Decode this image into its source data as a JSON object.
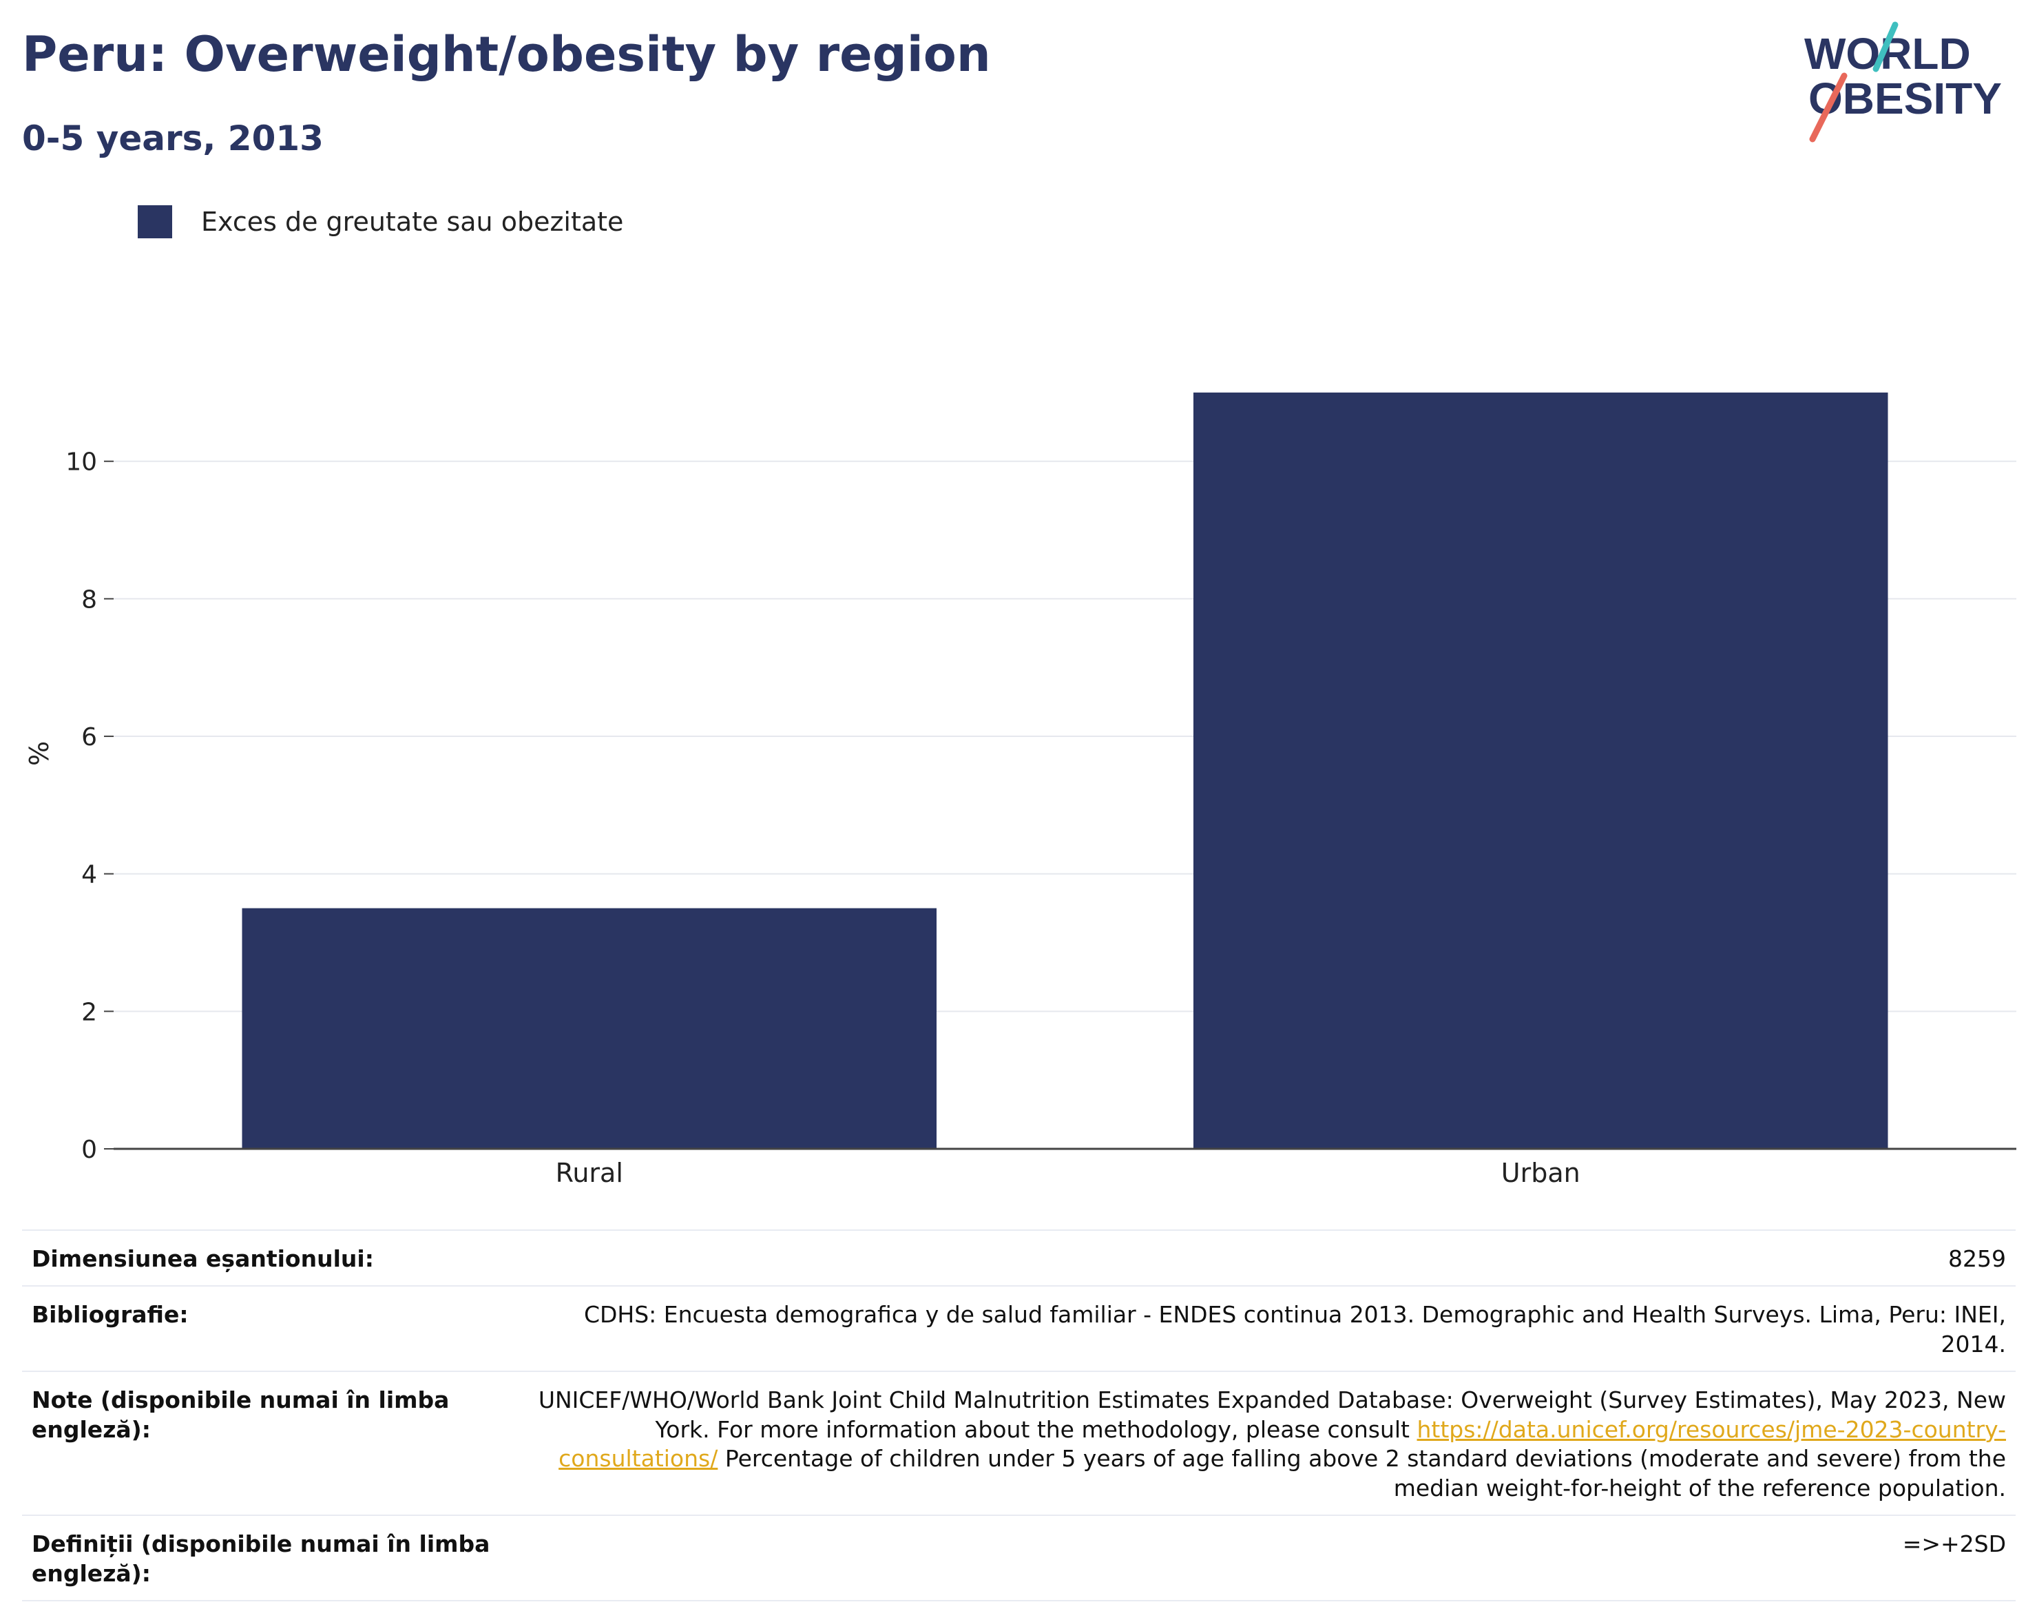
{
  "header": {
    "title": "Peru: Overweight/obesity by region",
    "subtitle": "0-5 years, 2013"
  },
  "logo": {
    "line1": "WORLD",
    "line2": "OBESITY"
  },
  "legend": {
    "label": "Exces de greutate sau obezitate",
    "color": "#2a3562"
  },
  "chart_data": {
    "type": "bar",
    "categories": [
      "Rural",
      "Urban"
    ],
    "series": [
      {
        "name": "Exces de greutate sau obezitate",
        "values": [
          3.5,
          11.0
        ]
      }
    ],
    "ylabel": "%",
    "xlabel": "",
    "ylim": [
      0,
      11.5
    ],
    "yticks": [
      0,
      2,
      4,
      6,
      8,
      10
    ],
    "grid": true,
    "bar_color": "#2a3562"
  },
  "info": {
    "sample_label": "Dimensiunea eșantionului:",
    "sample_value": "8259",
    "biblio_label": "Bibliografie:",
    "biblio_value": "CDHS: Encuesta demografica y de salud familiar - ENDES continua 2013. Demographic and Health Surveys. Lima, Peru: INEI, 2014.",
    "note_label": "Note (disponibile numai în limba engleză):",
    "note_value_part1": "UNICEF/WHO/World Bank Joint Child Malnutrition Estimates Expanded Database: Overweight (Survey Estimates), May 2023, New York. For more information about the methodology, please consult",
    "note_link": "https://data.unicef.org/resources/jme-2023-country-consultations/",
    "note_value_part2": "Percentage of children under 5 years of age falling above 2 standard deviations (moderate and severe) from the median weight-for-height of the reference population.",
    "def_label": "Definiții (disponibile numai în limba engleză):",
    "def_value": "=>+2SD"
  }
}
